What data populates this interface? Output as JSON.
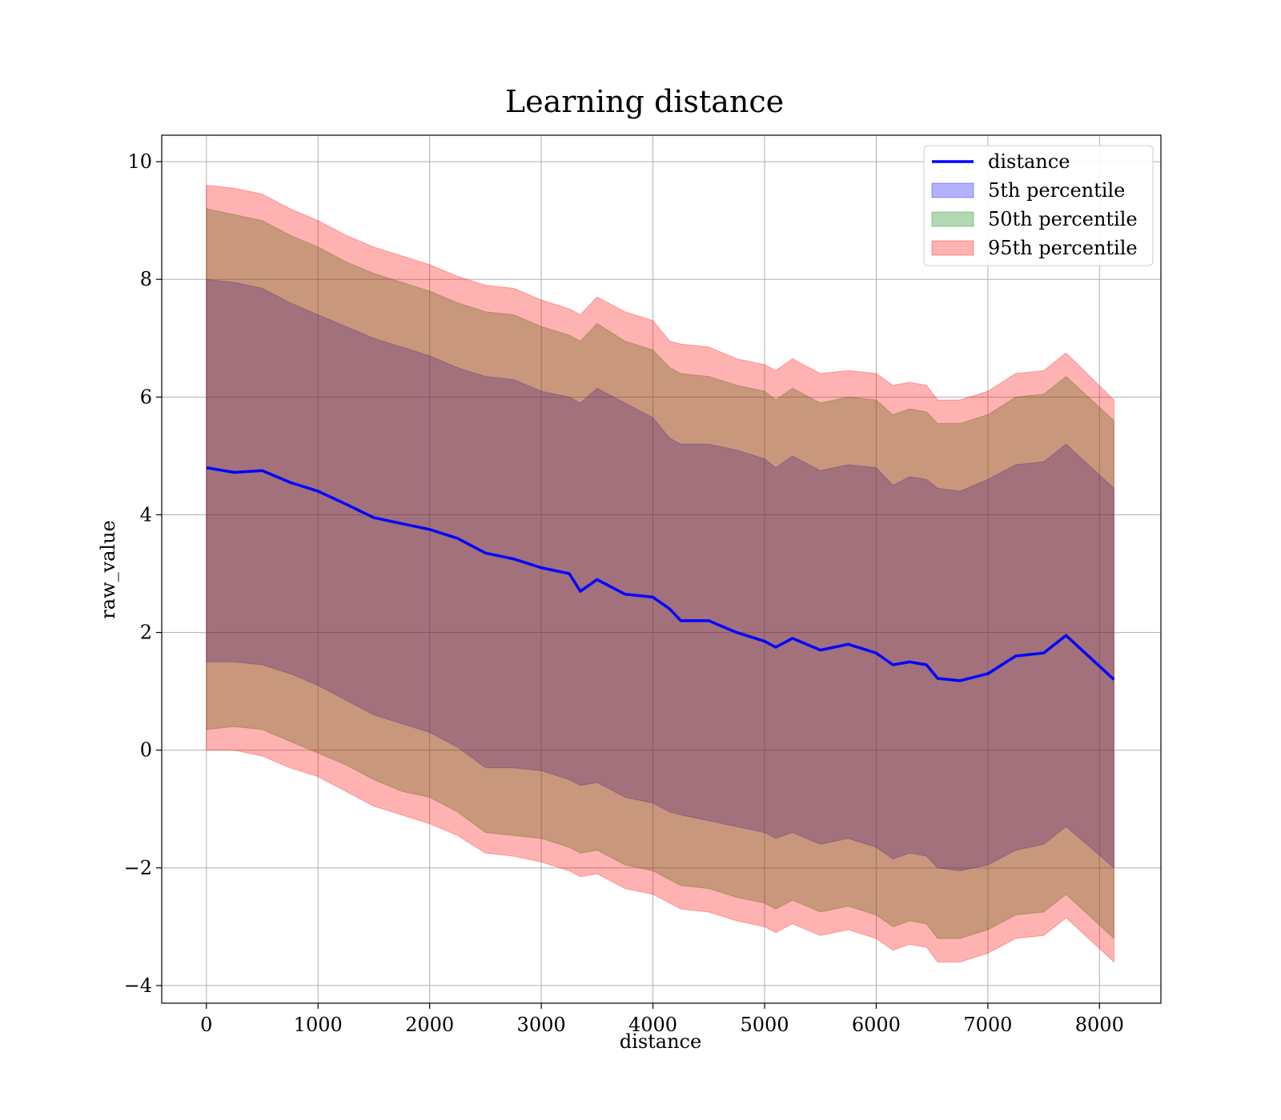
{
  "chart_data": {
    "type": "area",
    "title": "Learning distance",
    "xlabel": "distance",
    "ylabel": "raw_value",
    "xlim": [
      -400,
      8550
    ],
    "ylim": [
      -4.3,
      10.45
    ],
    "xticks": [
      0,
      1000,
      2000,
      3000,
      4000,
      5000,
      6000,
      7000,
      8000
    ],
    "yticks": [
      -4,
      -2,
      0,
      2,
      4,
      6,
      8,
      10
    ],
    "xtick_labels": [
      "0",
      "1000",
      "2000",
      "3000",
      "4000",
      "5000",
      "6000",
      "7000",
      "8000"
    ],
    "ytick_labels": [
      "−4",
      "−2",
      "0",
      "2",
      "4",
      "6",
      "8",
      "10"
    ],
    "grid": true,
    "legend_position": "top-right",
    "colors": {
      "line": "#0000ff",
      "band_5": "#0000ff",
      "band_50": "#008000",
      "band_95": "#ff0000"
    },
    "x": [
      0,
      250,
      500,
      750,
      1000,
      1250,
      1500,
      1750,
      2000,
      2250,
      2500,
      2750,
      3000,
      3250,
      3350,
      3500,
      3750,
      4000,
      4150,
      4250,
      4500,
      4750,
      5000,
      5100,
      5250,
      5500,
      5750,
      6000,
      6150,
      6300,
      6450,
      6550,
      6750,
      7000,
      7250,
      7500,
      7700,
      8130
    ],
    "series": [
      {
        "name": "distance",
        "kind": "line",
        "values": [
          4.8,
          4.72,
          4.75,
          4.55,
          4.4,
          4.18,
          3.95,
          3.85,
          3.75,
          3.6,
          3.35,
          3.25,
          3.1,
          3.0,
          2.7,
          2.9,
          2.65,
          2.6,
          2.4,
          2.2,
          2.2,
          2.0,
          1.85,
          1.75,
          1.9,
          1.7,
          1.8,
          1.65,
          1.45,
          1.5,
          1.45,
          1.22,
          1.18,
          1.3,
          1.6,
          1.65,
          1.95,
          1.2
        ]
      },
      {
        "name": "5th percentile",
        "kind": "band",
        "upper": [
          8.0,
          7.95,
          7.85,
          7.6,
          7.4,
          7.2,
          7.0,
          6.85,
          6.7,
          6.5,
          6.35,
          6.3,
          6.1,
          6.0,
          5.9,
          6.15,
          5.9,
          5.65,
          5.3,
          5.2,
          5.2,
          5.1,
          4.95,
          4.8,
          5.0,
          4.75,
          4.85,
          4.8,
          4.5,
          4.65,
          4.6,
          4.45,
          4.4,
          4.6,
          4.85,
          4.9,
          5.2,
          4.45
        ],
        "lower": [
          1.5,
          1.5,
          1.45,
          1.3,
          1.1,
          0.85,
          0.6,
          0.45,
          0.3,
          0.05,
          -0.3,
          -0.3,
          -0.35,
          -0.5,
          -0.6,
          -0.55,
          -0.8,
          -0.9,
          -1.05,
          -1.1,
          -1.2,
          -1.3,
          -1.4,
          -1.5,
          -1.4,
          -1.6,
          -1.5,
          -1.65,
          -1.85,
          -1.75,
          -1.8,
          -2.0,
          -2.05,
          -1.95,
          -1.7,
          -1.6,
          -1.3,
          -2.0
        ]
      },
      {
        "name": "50th percentile",
        "kind": "band",
        "upper": [
          9.2,
          9.1,
          9.0,
          8.75,
          8.55,
          8.3,
          8.1,
          7.95,
          7.8,
          7.6,
          7.45,
          7.4,
          7.2,
          7.05,
          6.95,
          7.25,
          6.95,
          6.8,
          6.5,
          6.4,
          6.35,
          6.2,
          6.1,
          5.95,
          6.15,
          5.9,
          6.0,
          5.95,
          5.7,
          5.8,
          5.75,
          5.55,
          5.55,
          5.7,
          6.0,
          6.05,
          6.35,
          5.6
        ],
        "lower": [
          0.35,
          0.4,
          0.35,
          0.15,
          -0.05,
          -0.25,
          -0.5,
          -0.7,
          -0.8,
          -1.05,
          -1.4,
          -1.45,
          -1.5,
          -1.65,
          -1.75,
          -1.7,
          -1.95,
          -2.05,
          -2.2,
          -2.3,
          -2.35,
          -2.5,
          -2.6,
          -2.7,
          -2.55,
          -2.75,
          -2.65,
          -2.8,
          -3.0,
          -2.9,
          -2.95,
          -3.2,
          -3.2,
          -3.05,
          -2.8,
          -2.75,
          -2.45,
          -3.2
        ]
      },
      {
        "name": "95th percentile",
        "kind": "band",
        "upper": [
          9.6,
          9.55,
          9.45,
          9.2,
          9.0,
          8.75,
          8.55,
          8.4,
          8.25,
          8.05,
          7.9,
          7.85,
          7.65,
          7.5,
          7.4,
          7.7,
          7.45,
          7.3,
          6.95,
          6.9,
          6.85,
          6.65,
          6.55,
          6.45,
          6.65,
          6.4,
          6.45,
          6.4,
          6.2,
          6.25,
          6.2,
          5.95,
          5.95,
          6.1,
          6.4,
          6.45,
          6.75,
          5.95
        ],
        "lower": [
          0.0,
          0.0,
          -0.1,
          -0.3,
          -0.45,
          -0.7,
          -0.95,
          -1.1,
          -1.25,
          -1.45,
          -1.75,
          -1.8,
          -1.9,
          -2.05,
          -2.15,
          -2.1,
          -2.35,
          -2.45,
          -2.6,
          -2.7,
          -2.75,
          -2.9,
          -3.0,
          -3.1,
          -2.95,
          -3.15,
          -3.05,
          -3.2,
          -3.4,
          -3.3,
          -3.35,
          -3.6,
          -3.6,
          -3.45,
          -3.2,
          -3.15,
          -2.85,
          -3.6
        ]
      }
    ]
  }
}
